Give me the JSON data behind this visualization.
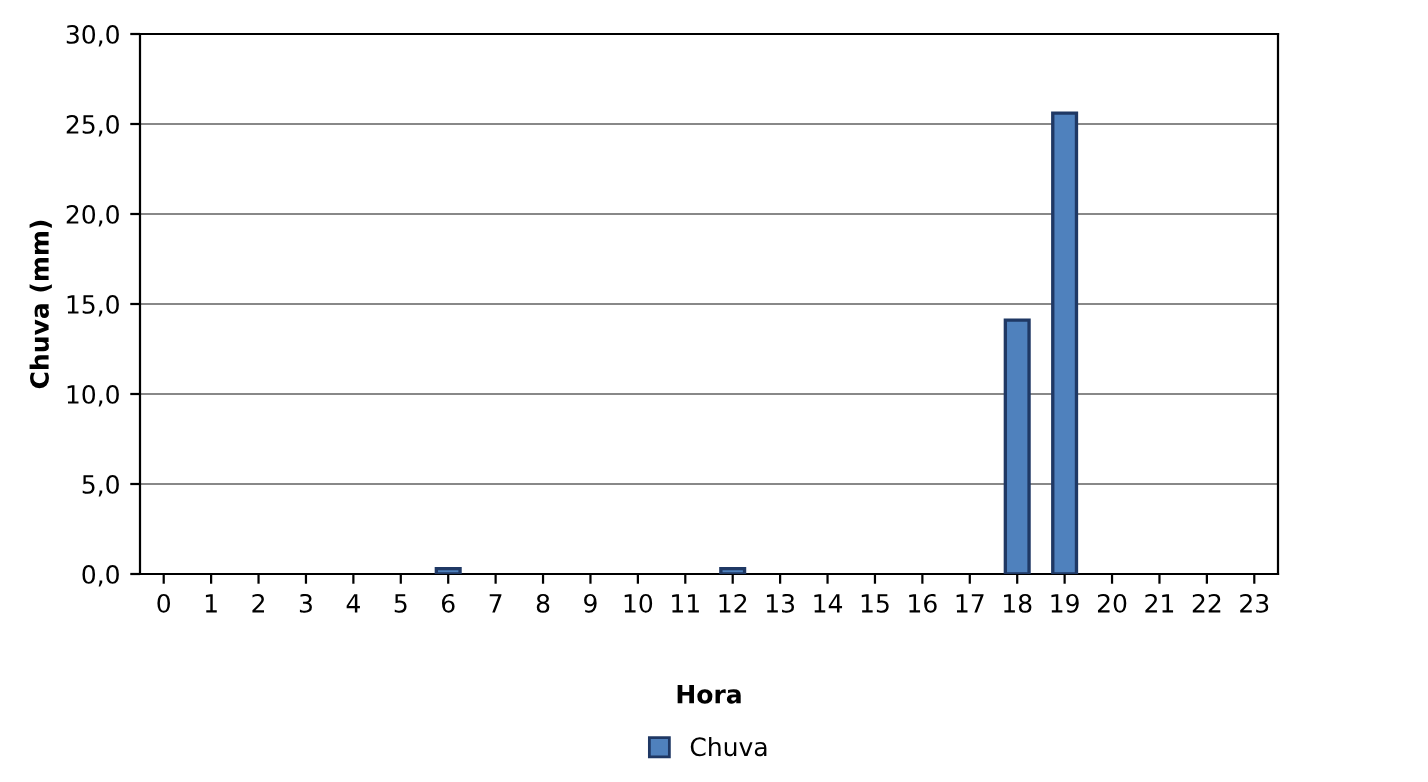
{
  "chart_data": {
    "type": "bar",
    "xlabel": "Hora",
    "ylabel": "Chuva (mm)",
    "categories": [
      "0",
      "1",
      "2",
      "3",
      "4",
      "5",
      "6",
      "7",
      "8",
      "9",
      "10",
      "11",
      "12",
      "13",
      "14",
      "15",
      "16",
      "17",
      "18",
      "19",
      "20",
      "21",
      "22",
      "23"
    ],
    "series": [
      {
        "name": "Chuva",
        "color": "#4f81bd",
        "values": [
          0,
          0,
          0,
          0,
          0,
          0,
          0.3,
          0,
          0,
          0,
          0,
          0,
          0.3,
          0,
          0,
          0,
          0,
          0,
          14.1,
          25.6,
          0,
          0,
          0,
          0
        ]
      }
    ],
    "ylim": [
      0,
      30
    ],
    "yticks": [
      {
        "value": 0,
        "label": "0,0"
      },
      {
        "value": 5,
        "label": "5,0"
      },
      {
        "value": 10,
        "label": "10,0"
      },
      {
        "value": 15,
        "label": "15,0"
      },
      {
        "value": 20,
        "label": "20,0"
      },
      {
        "value": 25,
        "label": "25,0"
      },
      {
        "value": 30,
        "label": "30,0"
      }
    ],
    "grid": "y",
    "legend": "bottom"
  }
}
